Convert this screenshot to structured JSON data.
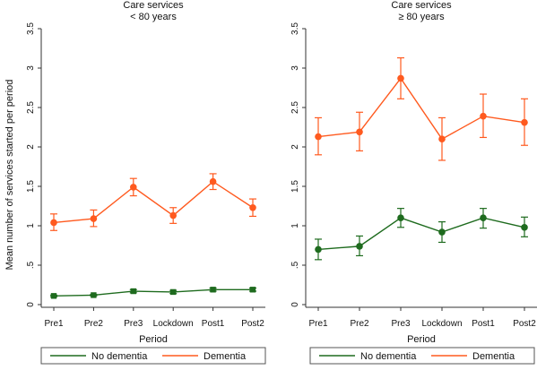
{
  "figure": {
    "ylabel": "Mean number of services started per period",
    "xlabel": "Period"
  },
  "chart_data": [
    {
      "type": "line",
      "title": "Care services",
      "subtitle": "< 80 years",
      "xlabel": "Period",
      "ylabel": "Mean number of services started per period",
      "categories": [
        "Pre1",
        "Pre2",
        "Pre3",
        "Lockdown",
        "Post1",
        "Post2"
      ],
      "yticks": [
        "0",
        ".5",
        "1",
        "1.5",
        "2",
        "2.5",
        "3",
        "3.5"
      ],
      "ylim": [
        0,
        3.5
      ],
      "series": [
        {
          "name": "No dementia",
          "color": "#1e6b1e",
          "marker": "square",
          "values": [
            0.11,
            0.12,
            0.17,
            0.16,
            0.19,
            0.19
          ],
          "ci_low": [
            0.1,
            0.11,
            0.15,
            0.14,
            0.17,
            0.17
          ],
          "ci_high": [
            0.12,
            0.13,
            0.19,
            0.18,
            0.21,
            0.21
          ]
        },
        {
          "name": "Dementia",
          "color": "#ff5a1f",
          "marker": "circle",
          "values": [
            1.04,
            1.09,
            1.49,
            1.13,
            1.56,
            1.23
          ],
          "ci_low": [
            0.94,
            0.99,
            1.38,
            1.03,
            1.46,
            1.12
          ],
          "ci_high": [
            1.15,
            1.2,
            1.6,
            1.23,
            1.66,
            1.34
          ]
        }
      ],
      "legend_placement": "bottom",
      "grid": false
    },
    {
      "type": "line",
      "title": "Care services",
      "subtitle": "≥ 80 years",
      "xlabel": "Period",
      "ylabel": "",
      "categories": [
        "Pre1",
        "Pre2",
        "Pre3",
        "Lockdown",
        "Post1",
        "Post2"
      ],
      "yticks": [
        "0",
        ".5",
        "1",
        "1.5",
        "2",
        "2.5",
        "3",
        "3.5"
      ],
      "ylim": [
        0,
        3.5
      ],
      "series": [
        {
          "name": "No dementia",
          "color": "#1e6b1e",
          "marker": "circle",
          "values": [
            0.7,
            0.74,
            1.1,
            0.92,
            1.1,
            0.98
          ],
          "ci_low": [
            0.57,
            0.62,
            0.98,
            0.79,
            0.97,
            0.86
          ],
          "ci_high": [
            0.83,
            0.87,
            1.22,
            1.05,
            1.22,
            1.11
          ]
        },
        {
          "name": "Dementia",
          "color": "#ff5a1f",
          "marker": "circle",
          "values": [
            2.13,
            2.19,
            2.87,
            2.1,
            2.39,
            2.31
          ],
          "ci_low": [
            1.9,
            1.95,
            2.61,
            1.83,
            2.12,
            2.02
          ],
          "ci_high": [
            2.37,
            2.44,
            3.13,
            2.37,
            2.67,
            2.61
          ]
        }
      ],
      "legend_placement": "bottom",
      "grid": false
    }
  ]
}
